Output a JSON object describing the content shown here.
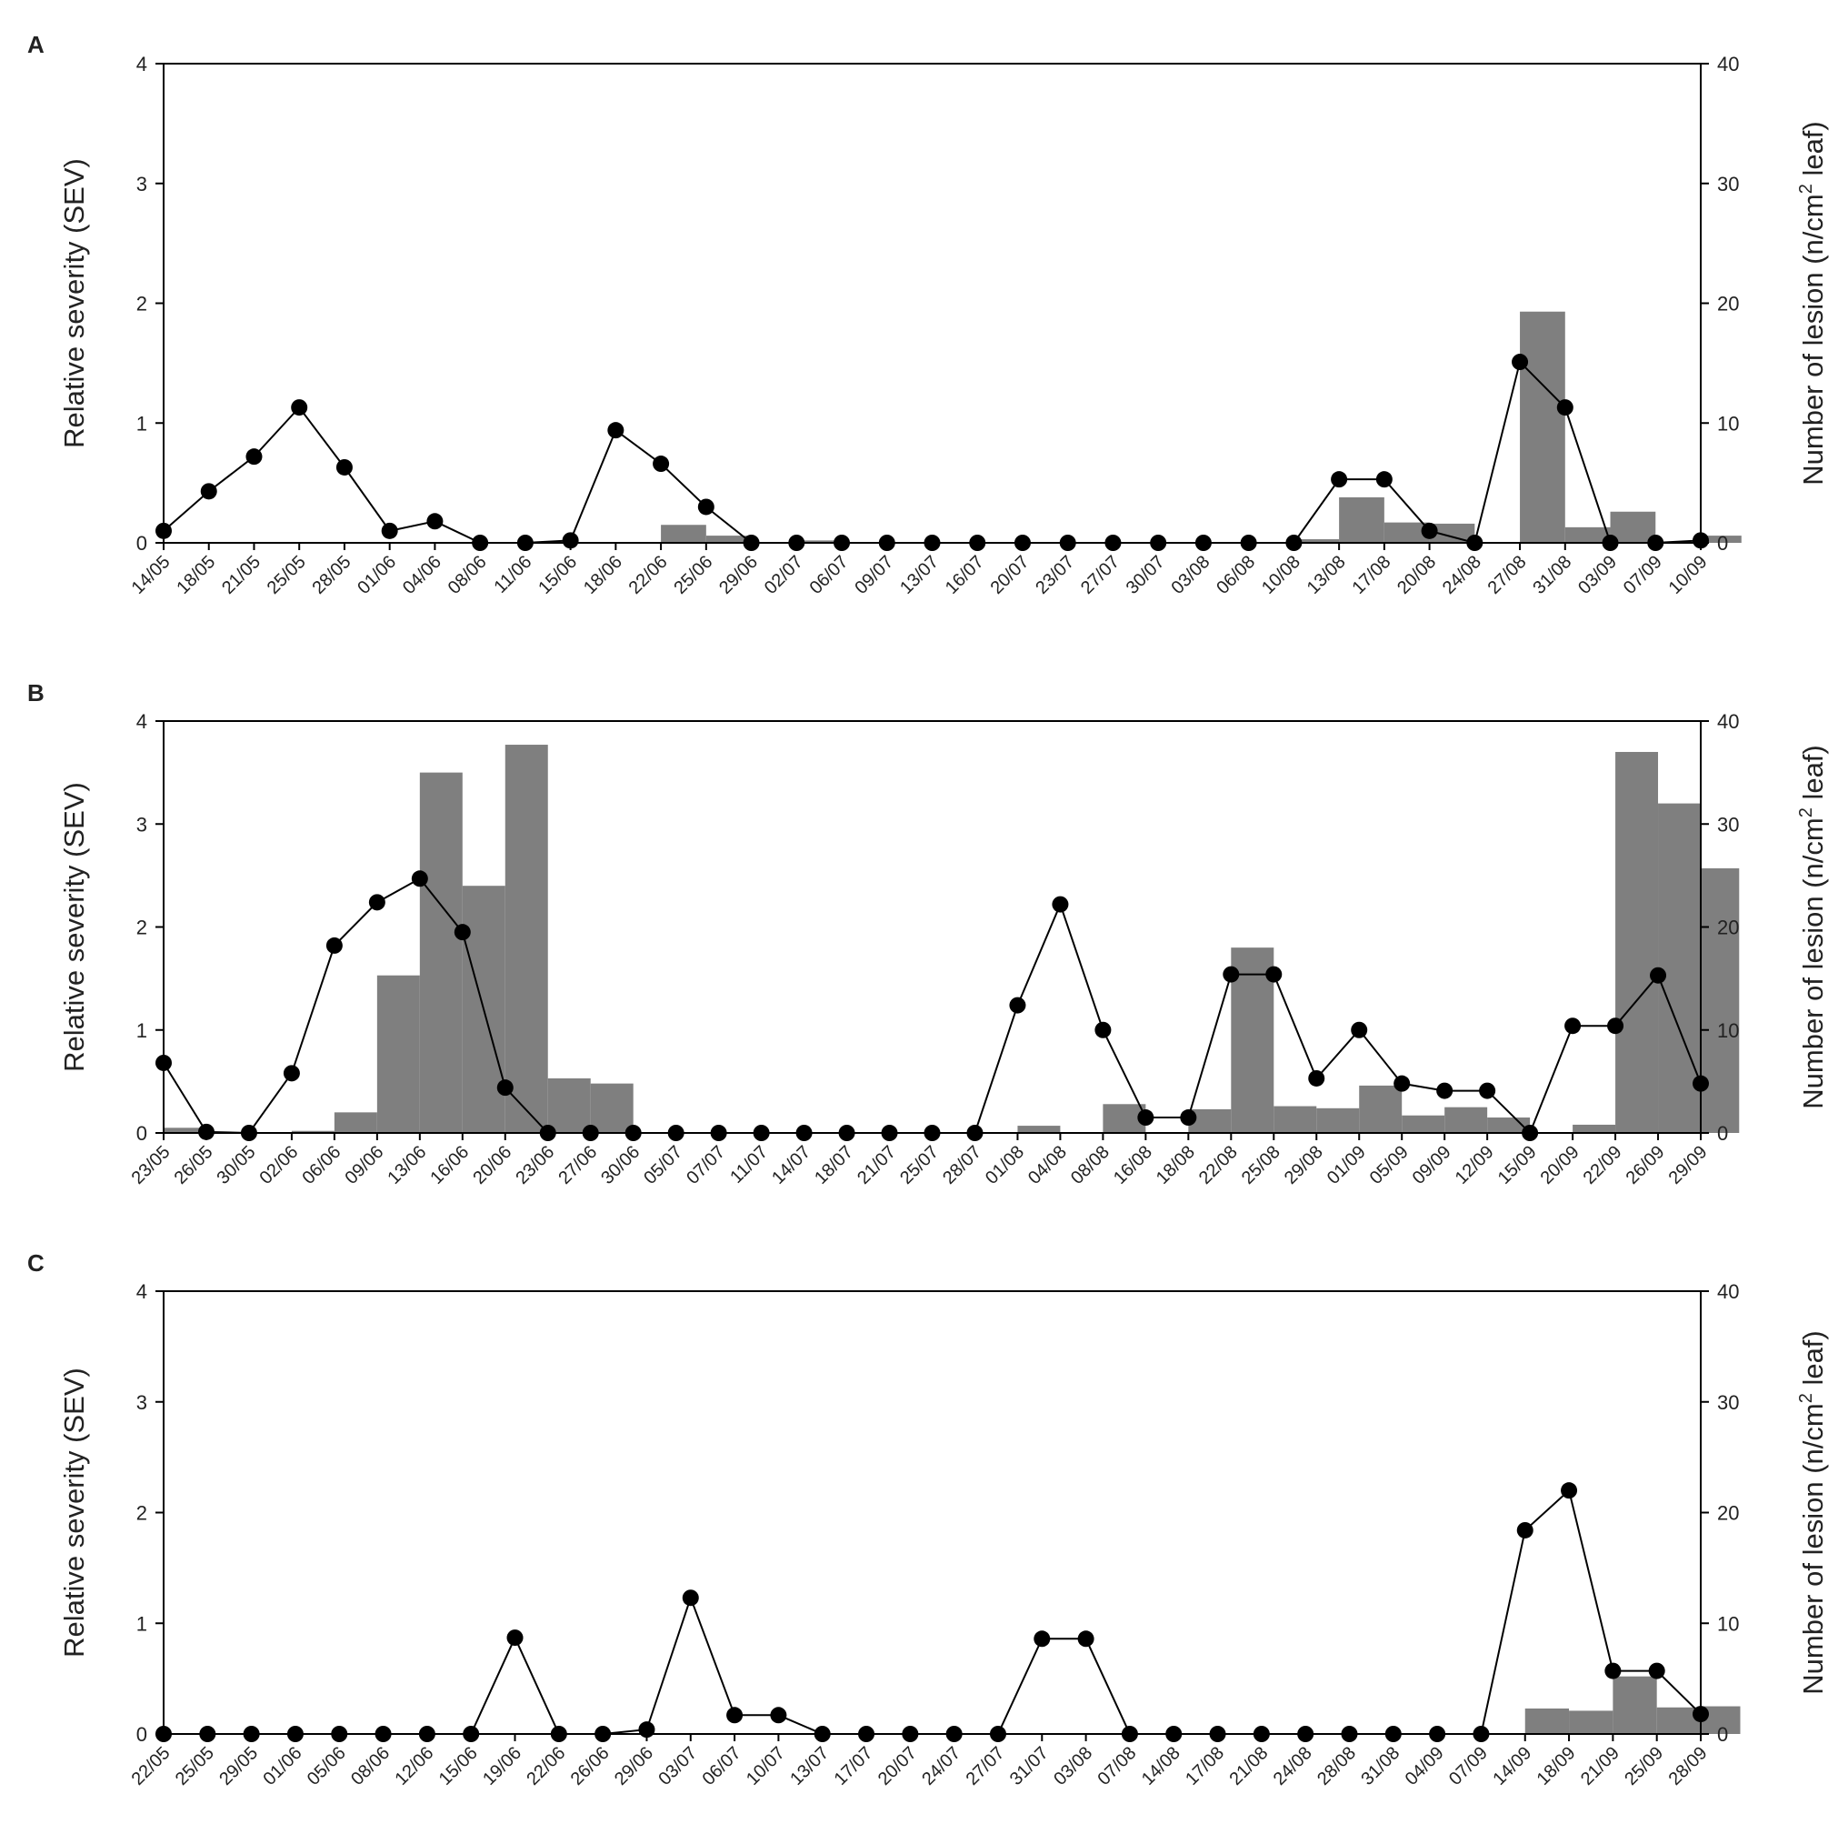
{
  "colors": {
    "bar": "#7f7f7f",
    "line": "#000000",
    "axis": "#000000"
  },
  "chart_data": [
    {
      "panel": "A",
      "type": "bar+line",
      "ylabel_left": "Relative severity (SEV)",
      "ylabel_right_main": "Number of lesion (n/cm",
      "ylabel_right_sup": "2",
      "ylabel_right_tail": " leaf)",
      "ylim_left": [
        0,
        4
      ],
      "ylim_right": [
        0,
        40
      ],
      "left_ticks": [
        "0",
        "1",
        "2",
        "3",
        "4"
      ],
      "right_ticks": [
        "0",
        "10",
        "20",
        "30",
        "40"
      ],
      "grid": false,
      "dates": [
        "14/05",
        "18/05",
        "21/05",
        "25/05",
        "28/05",
        "01/06",
        "04/06",
        "08/06",
        "11/06",
        "15/06",
        "18/06",
        "22/06",
        "25/06",
        "29/06",
        "02/07",
        "06/07",
        "09/07",
        "13/07",
        "16/07",
        "20/07",
        "23/07",
        "27/07",
        "30/07",
        "03/08",
        "06/08",
        "10/08",
        "13/08",
        "17/08",
        "20/08",
        "24/08",
        "27/08",
        "31/08",
        "03/09",
        "07/09",
        "10/09"
      ],
      "severity": [
        0.1,
        0.43,
        0.72,
        1.13,
        0.63,
        0.1,
        0.18,
        0,
        0,
        0.02,
        0.94,
        0.66,
        0.3,
        0,
        0,
        0,
        0,
        0,
        0,
        0,
        0,
        0,
        0,
        0,
        0,
        0,
        0.53,
        0.53,
        0.1,
        0,
        1.51,
        1.13,
        0,
        0,
        0.02
      ],
      "lesions": [
        0,
        0,
        0,
        0,
        0,
        0,
        0,
        0,
        0,
        0,
        0,
        1.5,
        0.6,
        0,
        0.2,
        0,
        0,
        0,
        0,
        0,
        0,
        0,
        0,
        0,
        0,
        0.3,
        3.8,
        1.7,
        1.6,
        0,
        19.3,
        1.3,
        2.6,
        0,
        0.6
      ]
    },
    {
      "panel": "B",
      "type": "bar+line",
      "ylabel_left": "Relative severity (SEV)",
      "ylabel_right_main": "Number of lesion (n/cm",
      "ylabel_right_sup": "2",
      "ylabel_right_tail": " leaf)",
      "ylim_left": [
        0,
        4
      ],
      "ylim_right": [
        0,
        40
      ],
      "left_ticks": [
        "0",
        "1",
        "2",
        "3",
        "4"
      ],
      "right_ticks": [
        "0",
        "10",
        "20",
        "30",
        "40"
      ],
      "grid": false,
      "dates": [
        "23/05",
        "26/05",
        "30/05",
        "02/06",
        "06/06",
        "09/06",
        "13/06",
        "16/06",
        "20/06",
        "23/06",
        "27/06",
        "30/06",
        "05/07",
        "07/07",
        "11/07",
        "14/07",
        "18/07",
        "21/07",
        "25/07",
        "28/07",
        "01/08",
        "04/08",
        "08/08",
        "16/08",
        "18/08",
        "22/08",
        "25/08",
        "29/08",
        "01/09",
        "05/09",
        "09/09",
        "12/09",
        "15/09",
        "20/09",
        "22/09",
        "26/09",
        "29/09"
      ],
      "severity": [
        0.68,
        0.01,
        0,
        0.58,
        1.82,
        2.24,
        2.47,
        1.95,
        0.44,
        0,
        0,
        0,
        0,
        0,
        0,
        0,
        0,
        0,
        0,
        0,
        1.24,
        2.22,
        1.0,
        0.15,
        0.15,
        1.54,
        1.54,
        0.53,
        1.0,
        0.48,
        0.41,
        0.41,
        0,
        1.04,
        1.04,
        1.53,
        0.48
      ],
      "lesions": [
        0.5,
        0,
        0,
        0.2,
        2.0,
        15.3,
        35.0,
        24.0,
        37.7,
        5.3,
        4.8,
        0,
        0,
        0,
        0,
        0,
        0,
        0,
        0,
        0,
        0.7,
        0,
        2.8,
        0,
        2.3,
        18.0,
        2.6,
        2.4,
        4.6,
        1.7,
        2.5,
        1.5,
        0,
        0.8,
        37.0,
        32.0,
        25.7
      ]
    },
    {
      "panel": "C",
      "type": "bar+line",
      "ylabel_left": "Relative severity (SEV)",
      "ylabel_right_main": "Number of lesion (n/cm",
      "ylabel_right_sup": "2",
      "ylabel_right_tail": " leaf)",
      "ylim_left": [
        0,
        4
      ],
      "ylim_right": [
        0,
        40
      ],
      "left_ticks": [
        "0",
        "1",
        "2",
        "3",
        "4"
      ],
      "right_ticks": [
        "0",
        "10",
        "20",
        "30",
        "40"
      ],
      "grid": false,
      "dates": [
        "22/05",
        "25/05",
        "29/05",
        "01/06",
        "05/06",
        "08/06",
        "12/06",
        "15/06",
        "19/06",
        "22/06",
        "26/06",
        "29/06",
        "03/07",
        "06/07",
        "10/07",
        "13/07",
        "17/07",
        "20/07",
        "24/07",
        "27/07",
        "31/07",
        "03/08",
        "07/08",
        "14/08",
        "17/08",
        "21/08",
        "24/08",
        "28/08",
        "31/08",
        "04/09",
        "07/09",
        "14/09",
        "18/09",
        "21/09",
        "25/09",
        "28/09"
      ],
      "severity": [
        0,
        0,
        0,
        0,
        0,
        0,
        0,
        0,
        0.87,
        0,
        0,
        0.04,
        1.23,
        0.17,
        0.17,
        0,
        0,
        0,
        0,
        0,
        0.86,
        0.86,
        0,
        0,
        0,
        0,
        0,
        0,
        0,
        0,
        0,
        1.84,
        2.2,
        0.57,
        0.57,
        0.18
      ],
      "lesions": [
        0,
        0,
        0,
        0,
        0,
        0,
        0,
        0,
        0,
        0,
        0,
        0,
        0,
        0,
        0,
        0,
        0,
        0,
        0,
        0,
        0,
        0,
        0,
        0,
        0,
        0,
        0,
        0,
        0,
        0,
        0,
        2.3,
        2.1,
        5.2,
        2.4,
        2.5
      ]
    }
  ]
}
